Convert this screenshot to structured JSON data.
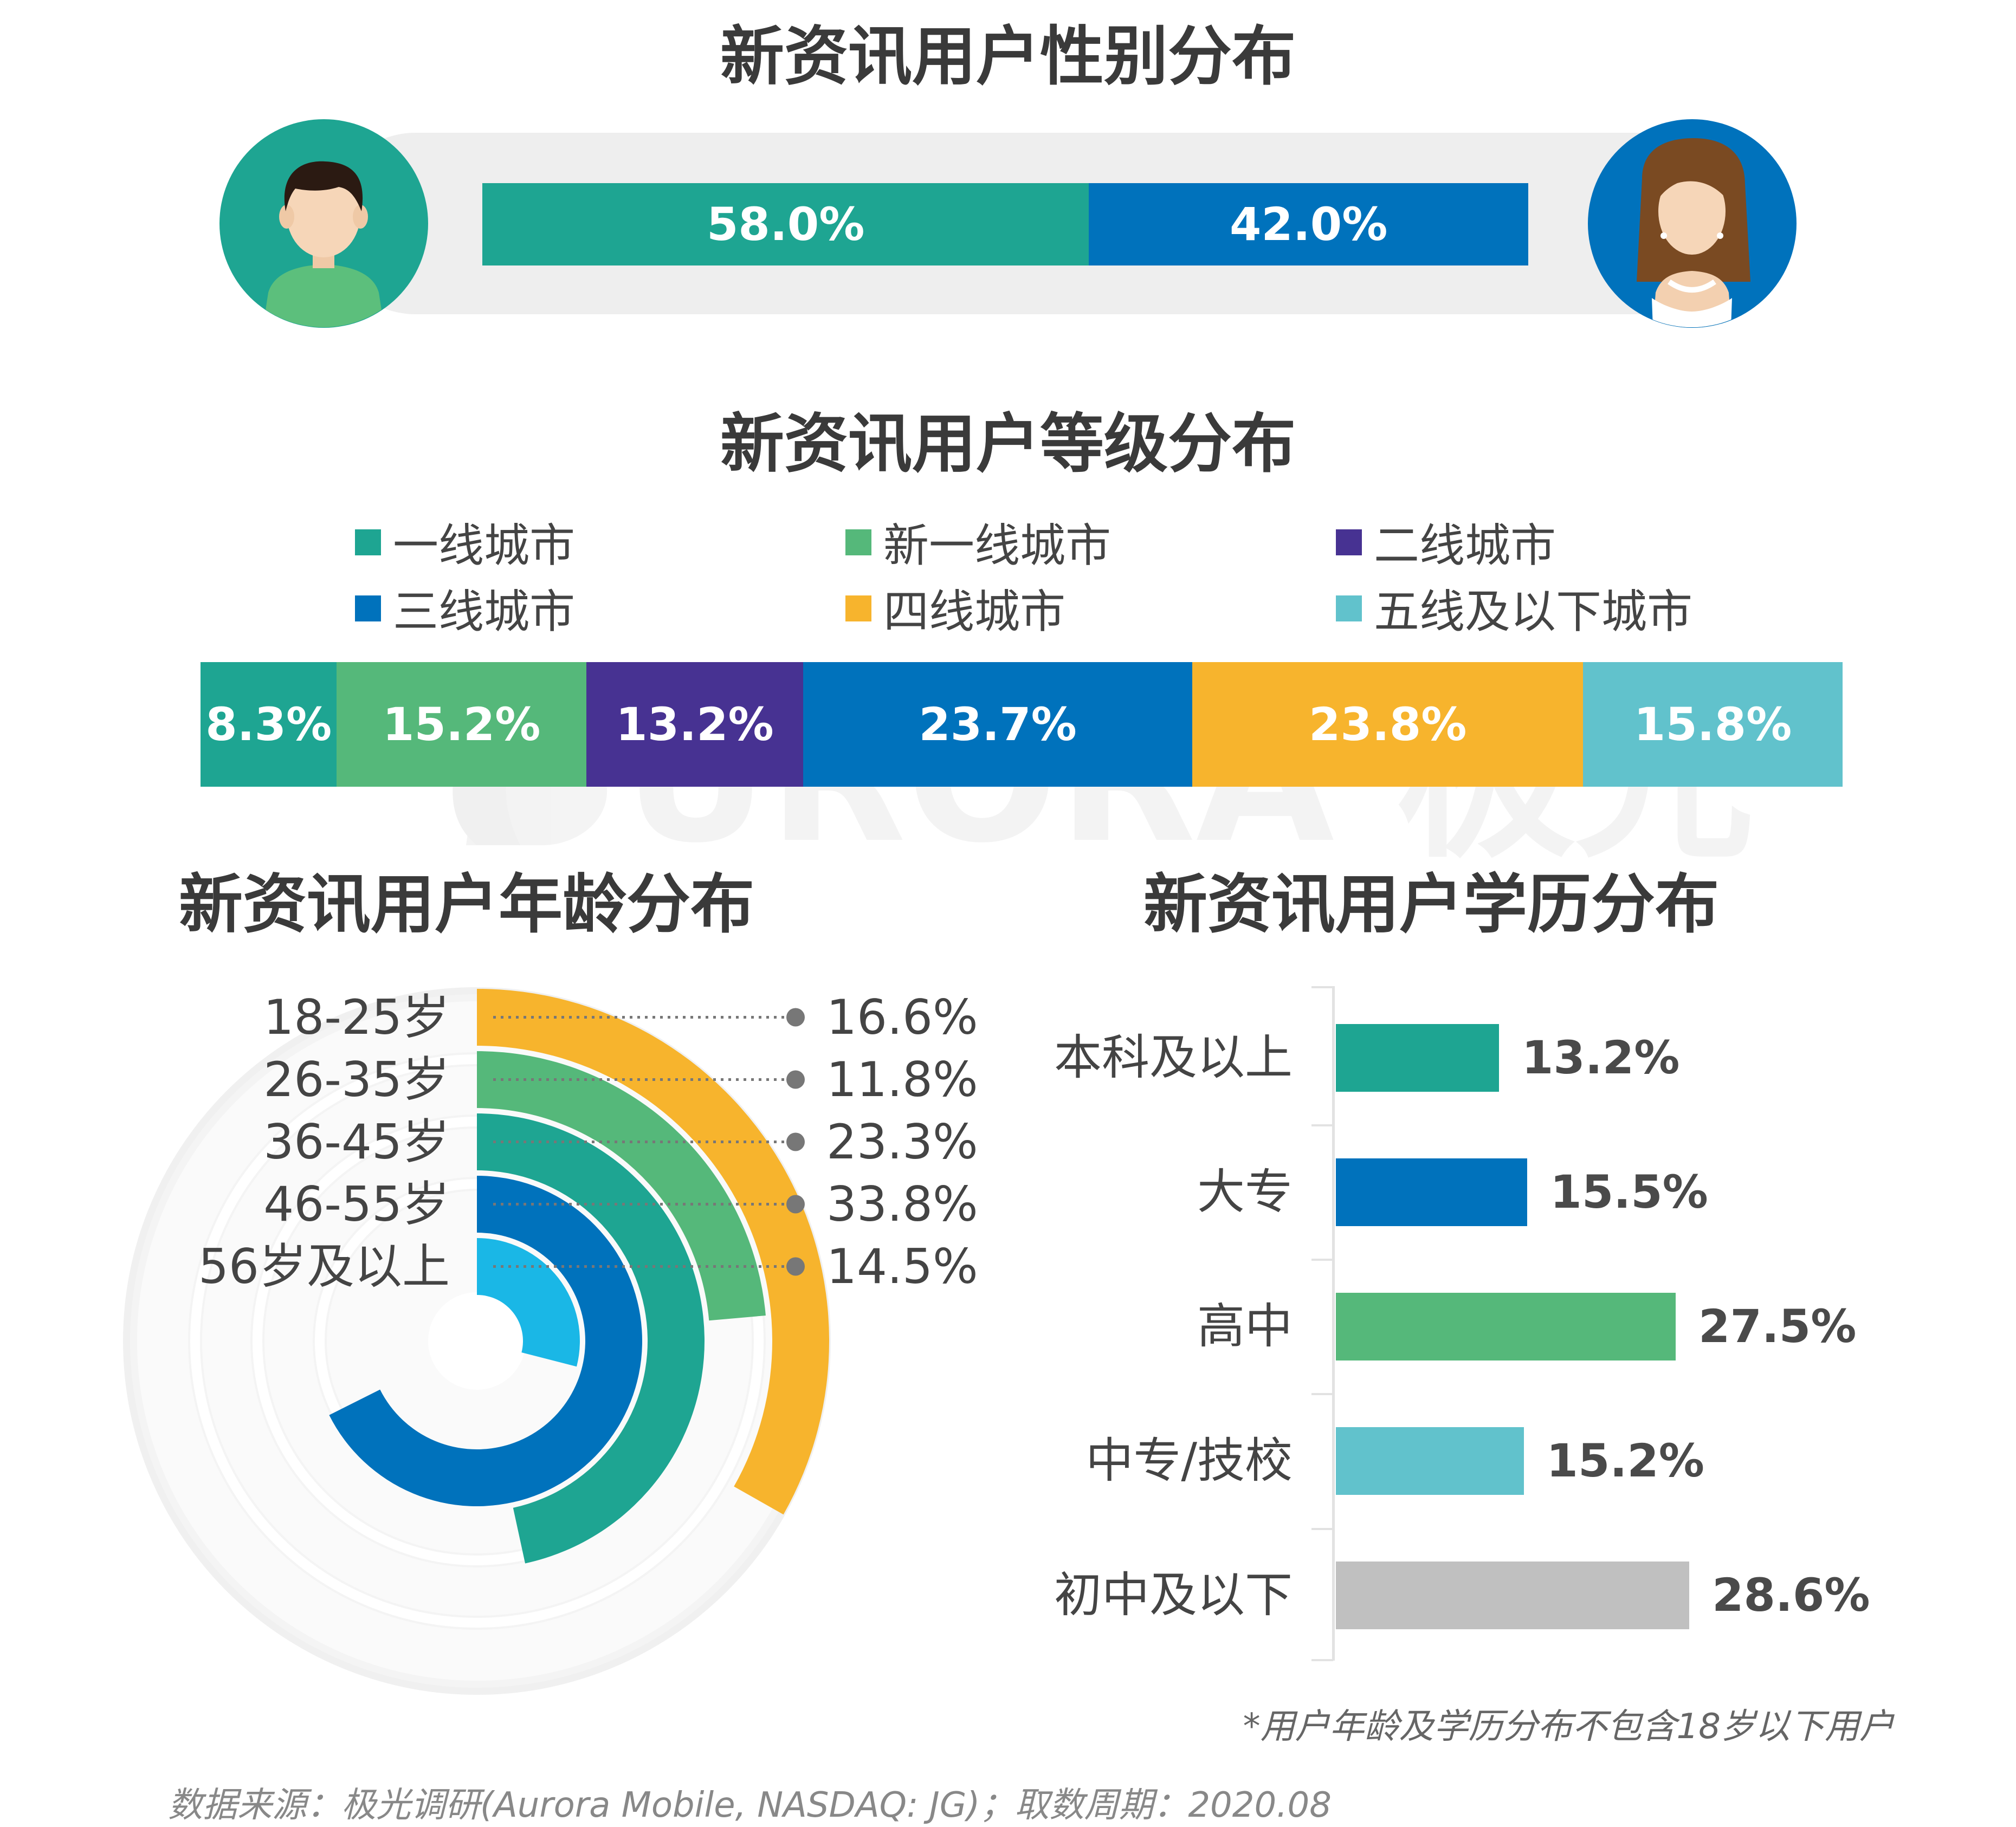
{
  "titles": {
    "gender": "新资讯用户性别分布",
    "tier": "新资讯用户等级分布",
    "age": "新资讯用户年龄分布",
    "education": "新资讯用户学历分布"
  },
  "watermark": {
    "text": "URORA 极光"
  },
  "chart_data": [
    {
      "type": "bar",
      "orientation": "stacked-horizontal",
      "title": "新资讯用户性别分布",
      "categories": [
        "男",
        "女"
      ],
      "values": [
        58.0,
        42.0
      ],
      "labels": [
        "58.0%",
        "42.0%"
      ],
      "colors": [
        "#1ea592",
        "#0072bc"
      ],
      "icons": [
        "male-avatar-icon",
        "female-avatar-icon"
      ]
    },
    {
      "type": "bar",
      "orientation": "stacked-horizontal",
      "title": "新资讯用户等级分布",
      "categories": [
        "一线城市",
        "新一线城市",
        "二线城市",
        "三线城市",
        "四线城市",
        "五线及以下城市"
      ],
      "values": [
        8.3,
        15.2,
        13.2,
        23.7,
        23.8,
        15.8
      ],
      "labels": [
        "8.3%",
        "15.2%",
        "13.2%",
        "23.7%",
        "23.8%",
        "15.8%"
      ],
      "colors": [
        "#1ea592",
        "#55b87a",
        "#473292",
        "#0072bc",
        "#f7b42d",
        "#61c2cc"
      ],
      "legend": "top"
    },
    {
      "type": "bar",
      "orientation": "radial",
      "title": "新资讯用户年龄分布",
      "categories": [
        "18-25岁",
        "26-35岁",
        "36-45岁",
        "46-55岁",
        "56岁及以上"
      ],
      "values": [
        16.6,
        11.8,
        23.3,
        33.8,
        14.5
      ],
      "labels": [
        "16.6%",
        "11.8%",
        "23.3%",
        "33.8%",
        "14.5%"
      ],
      "colors": [
        "#f7b42d",
        "#55b87a",
        "#1ea592",
        "#0072bc",
        "#1ab7e6"
      ],
      "max": 50
    },
    {
      "type": "bar",
      "orientation": "horizontal",
      "title": "新资讯用户学历分布",
      "categories": [
        "本科及以上",
        "大专",
        "高中",
        "中专/技校",
        "初中及以下"
      ],
      "values": [
        13.2,
        15.5,
        27.5,
        15.2,
        28.6
      ],
      "labels": [
        "13.2%",
        "15.5%",
        "27.5%",
        "15.2%",
        "28.6%"
      ],
      "colors": [
        "#1ea592",
        "#0072bc",
        "#55b87a",
        "#61c2cc",
        "#c0c0c0"
      ]
    }
  ],
  "footnote": "*用户年龄及学历分布不包含18岁以下用户",
  "source": "数据来源：极光调研(Aurora Mobile, NASDAQ: JG)；取数周期：2020.08"
}
